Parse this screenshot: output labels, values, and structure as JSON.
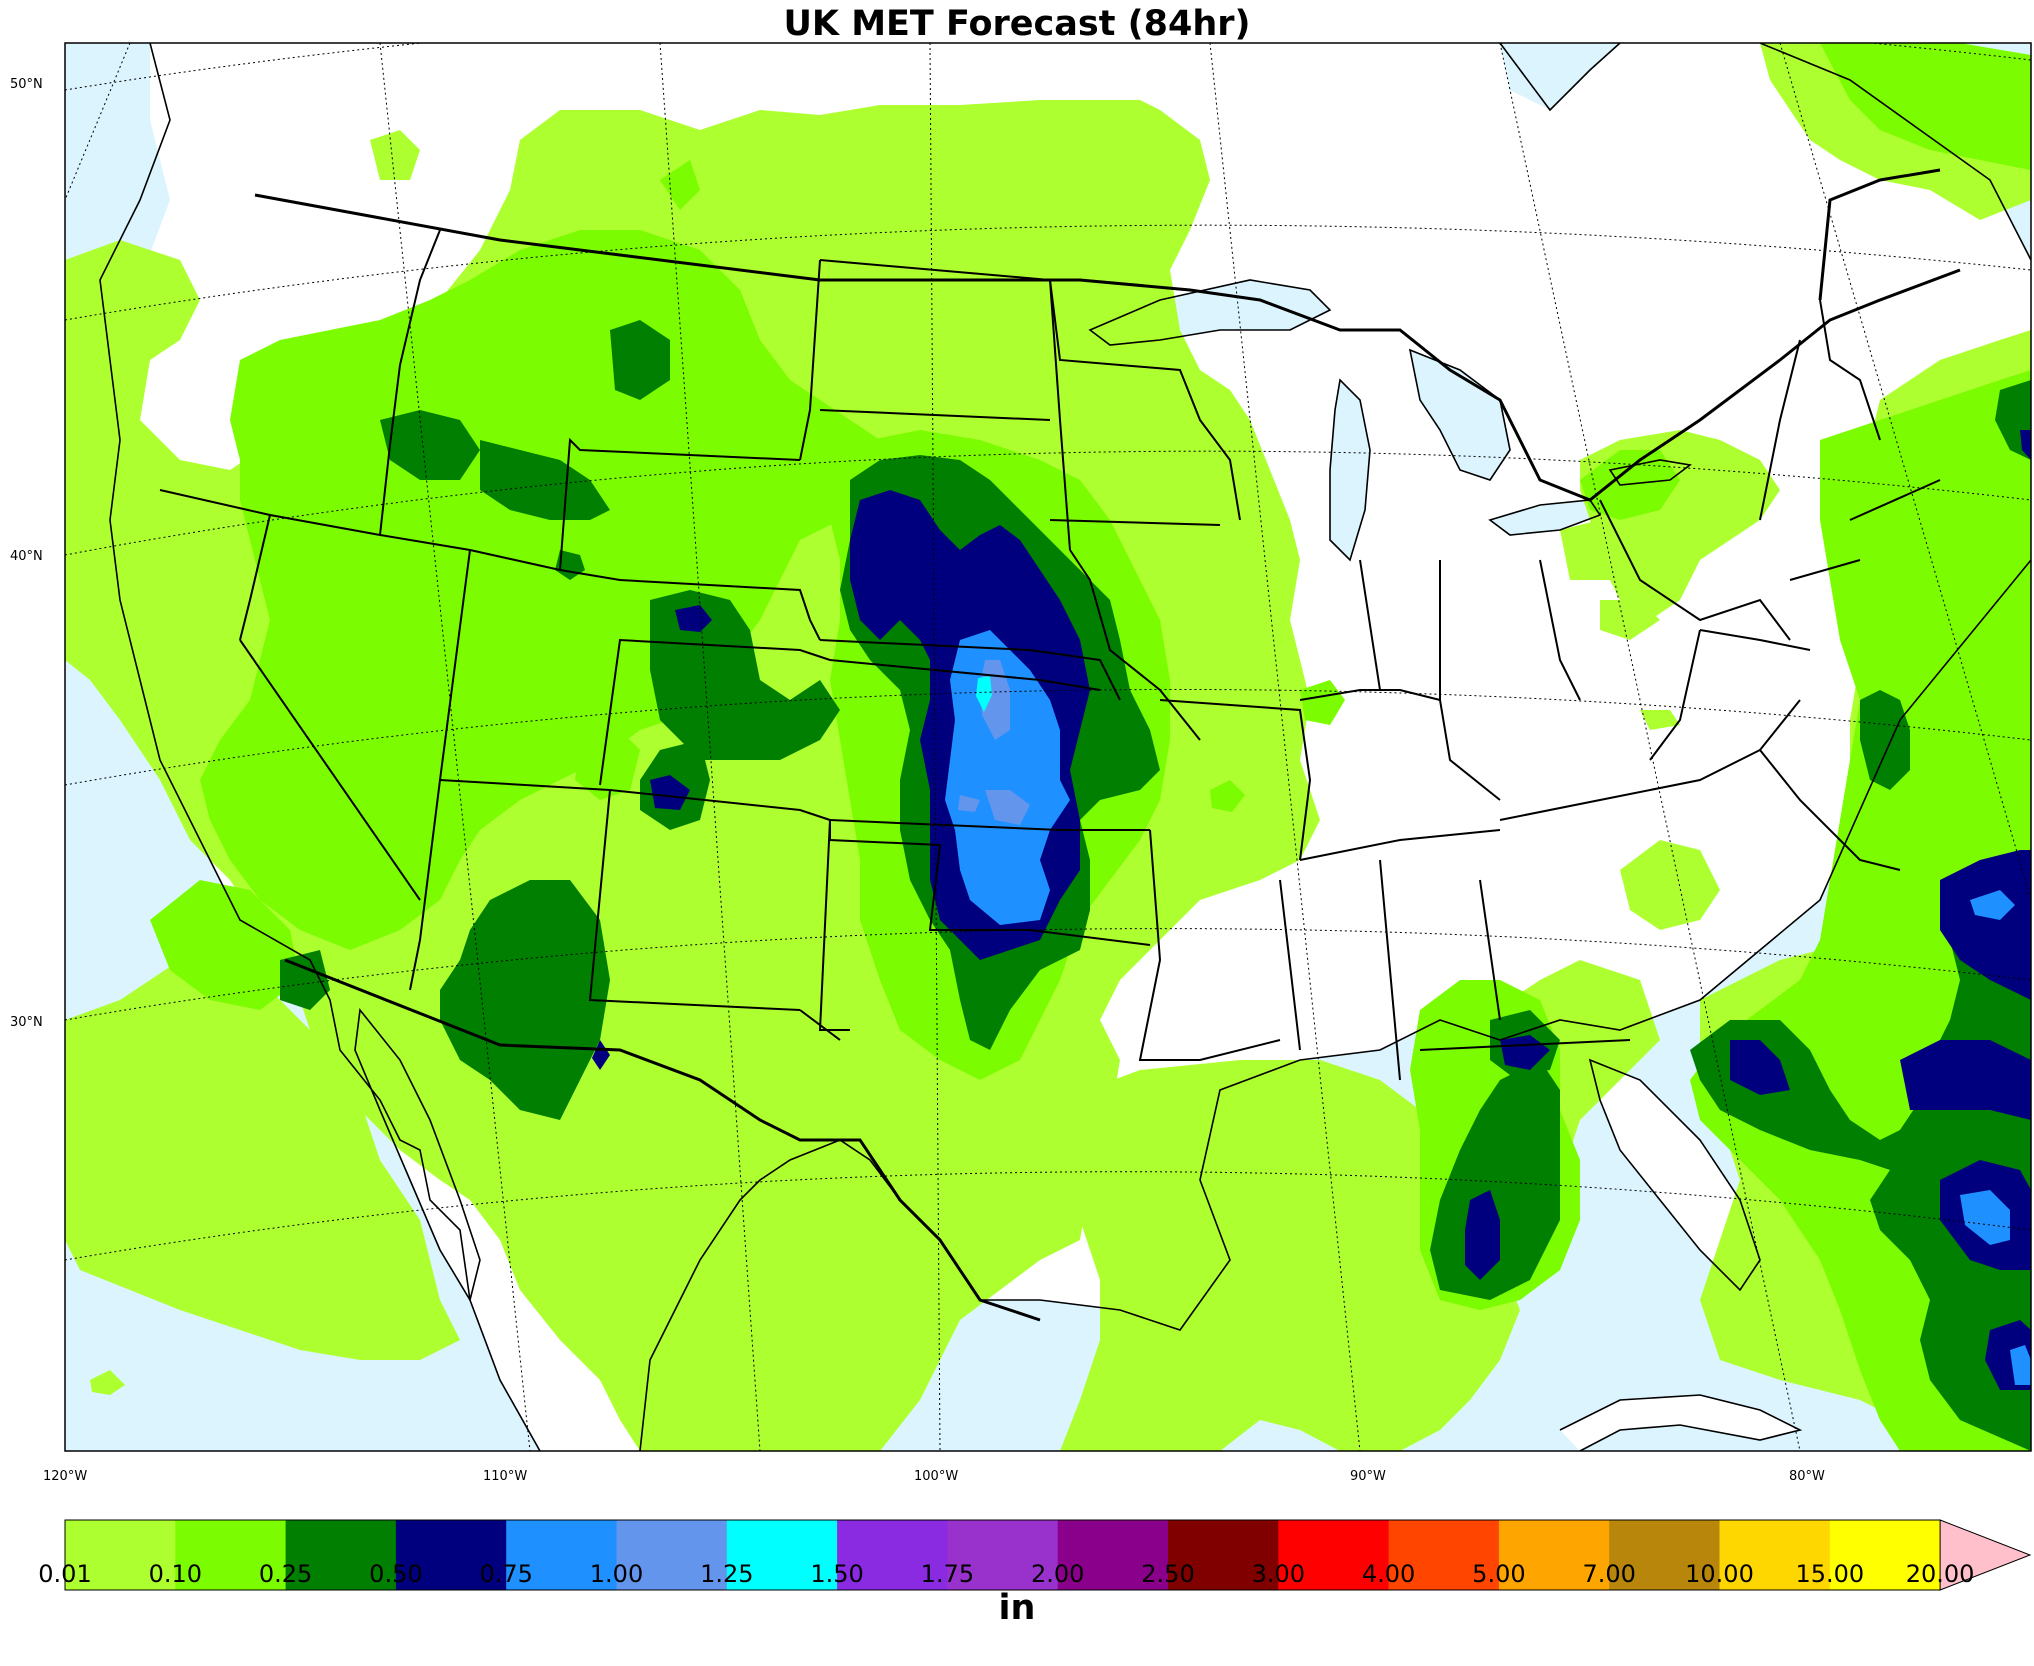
{
  "title": "UK MET Forecast (84hr)",
  "lat_labels": [
    "50°N",
    "40°N",
    "30°N"
  ],
  "lon_labels": [
    "120°W",
    "110°W",
    "100°W",
    "90°W",
    "80°W"
  ],
  "colorbar": {
    "units": "in",
    "bounds": [
      "0.01",
      "0.10",
      "0.25",
      "0.50",
      "0.75",
      "1.00",
      "1.25",
      "1.50",
      "1.75",
      "2.00",
      "2.50",
      "3.00",
      "4.00",
      "5.00",
      "7.00",
      "10.00",
      "15.00",
      "20.00"
    ],
    "colors": [
      "#adff2f",
      "#7cfc00",
      "#007f00",
      "#00007f",
      "#1e90ff",
      "#6495ed",
      "#00ffff",
      "#8a2be2",
      "#9932cc",
      "#8b008b",
      "#800000",
      "#ff0000",
      "#ff4500",
      "#ffa500",
      "#b8860b",
      "#ffd700",
      "#ffff00"
    ],
    "extend_color": "#ffc0cb"
  },
  "colors": {
    "ocean": "#dbf4fd",
    "land": "#ffffff"
  }
}
